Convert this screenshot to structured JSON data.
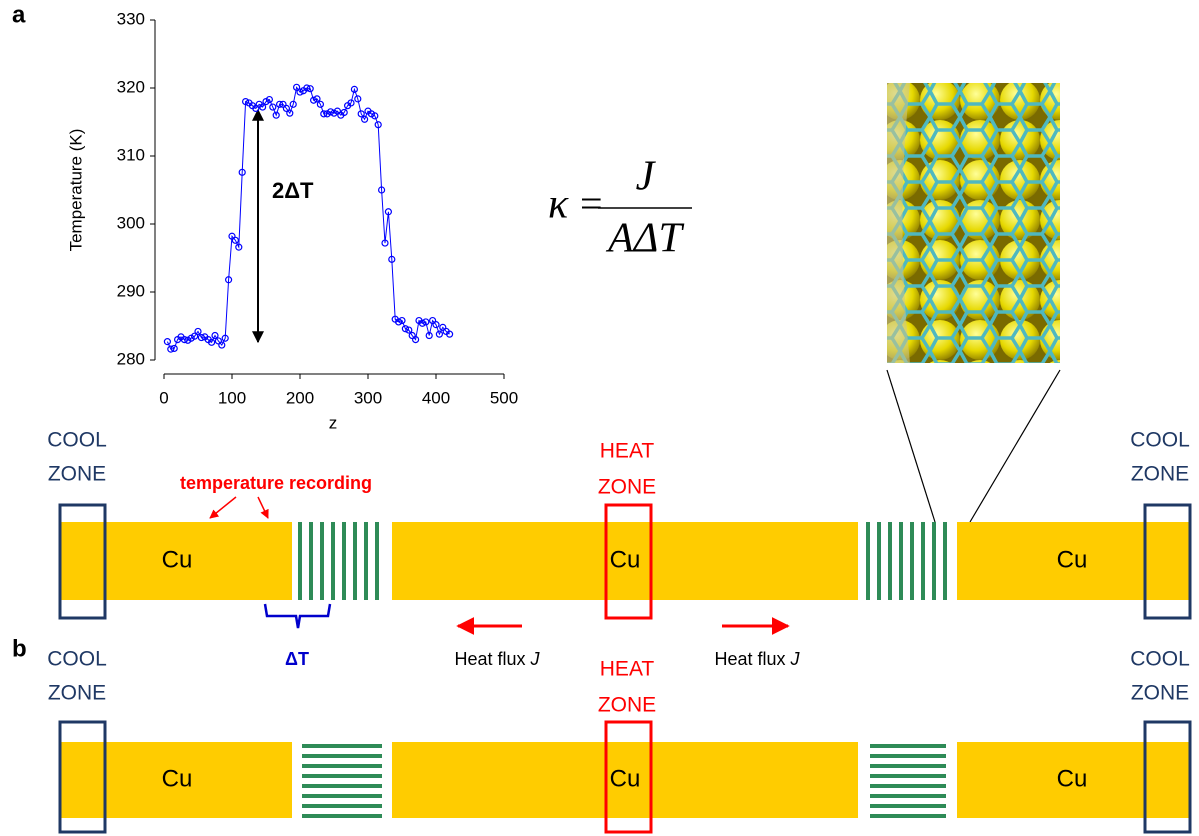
{
  "panel_labels": [
    "a",
    "b"
  ],
  "chart_data": {
    "type": "line",
    "x_label": "z",
    "y_label": "Temperature (K)",
    "annotation": "2ΔT",
    "color": "#0000ff",
    "marker": "circle",
    "x": [
      5,
      10,
      15,
      20,
      25,
      30,
      35,
      40,
      45,
      50,
      55,
      60,
      65,
      70,
      75,
      80,
      85,
      90,
      95,
      100,
      105,
      110,
      115,
      120,
      125,
      130,
      135,
      140,
      145,
      150,
      155,
      160,
      165,
      170,
      175,
      180,
      185,
      190,
      195,
      200,
      205,
      210,
      215,
      220,
      225,
      230,
      235,
      240,
      245,
      250,
      255,
      260,
      265,
      270,
      275,
      280,
      285,
      290,
      295,
      300,
      305,
      310,
      315,
      320,
      325,
      330,
      335,
      340,
      345,
      350,
      355,
      360,
      365,
      370,
      375,
      380,
      385,
      390,
      395,
      400,
      405,
      410,
      415,
      420
    ],
    "values": [
      282.7,
      281.6,
      281.7,
      283.0,
      283.4,
      283.0,
      282.9,
      283.2,
      283.5,
      284.2,
      283.3,
      283.4,
      283.0,
      282.6,
      283.6,
      282.8,
      282.2,
      283.2,
      291.8,
      298.2,
      297.6,
      296.6,
      307.6,
      318.0,
      317.8,
      317.4,
      317.0,
      317.6,
      317.2,
      318.0,
      318.3,
      317.2,
      316.0,
      317.6,
      317.6,
      317.0,
      316.3,
      317.6,
      320.1,
      319.4,
      319.6,
      320.0,
      319.9,
      318.2,
      318.4,
      317.6,
      316.2,
      316.2,
      316.5,
      316.3,
      316.6,
      316.0,
      316.4,
      317.4,
      317.8,
      319.8,
      318.4,
      316.2,
      315.4,
      316.6,
      316.2,
      315.9,
      314.6,
      305.0,
      297.2,
      301.8,
      294.8,
      286.0,
      285.6,
      285.8,
      284.6,
      284.4,
      283.6,
      283.0,
      285.8,
      285.4,
      285.6,
      283.6,
      285.8,
      285.2,
      283.8,
      284.8,
      284.2,
      283.8
    ],
    "xlim": [
      0,
      500
    ],
    "xticks": [
      0,
      100,
      200,
      300,
      400,
      500
    ],
    "ylim": [
      280,
      330
    ],
    "yticks": [
      280,
      290,
      300,
      310,
      320,
      330
    ]
  },
  "formula": {
    "lhs": "κ",
    "equals": "=",
    "numerator": "J",
    "denominator": "AΔT"
  },
  "diagram_a": {
    "cool_zone_left": [
      "COOL",
      "ZONE"
    ],
    "heat_zone": [
      "HEAT",
      "ZONE"
    ],
    "cool_zone_right": [
      "COOL",
      "ZONE"
    ],
    "cu_labels": [
      "Cu",
      "Cu",
      "Cu"
    ],
    "temperature_recording": "temperature recording",
    "delta_t": "ΔT",
    "heat_flux_left": {
      "text": "Heat flux",
      "symbol": "J"
    },
    "heat_flux_right": {
      "text": "Heat flux",
      "symbol": "J"
    }
  },
  "diagram_b": {
    "cool_zone_left": [
      "COOL",
      "ZONE"
    ],
    "heat_zone": [
      "HEAT",
      "ZONE"
    ],
    "cool_zone_right": [
      "COOL",
      "ZONE"
    ],
    "cu_labels": [
      "Cu",
      "Cu",
      "Cu"
    ]
  }
}
